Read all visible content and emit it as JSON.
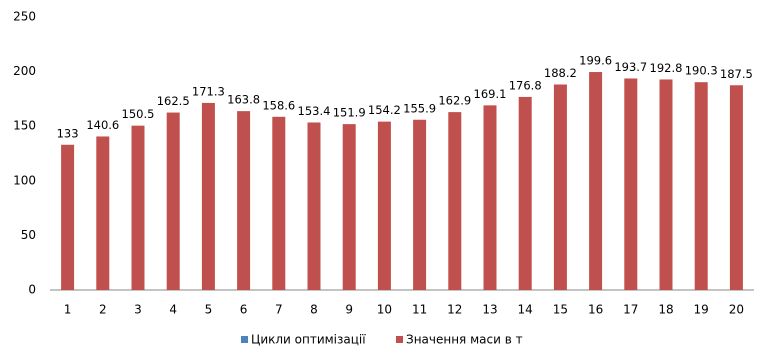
{
  "chart_data": {
    "type": "bar",
    "categories": [
      "1",
      "2",
      "3",
      "4",
      "5",
      "6",
      "7",
      "8",
      "9",
      "10",
      "11",
      "12",
      "13",
      "14",
      "15",
      "16",
      "17",
      "18",
      "19",
      "20"
    ],
    "values": [
      133,
      140.6,
      150.5,
      162.5,
      171.3,
      163.8,
      158.6,
      153.4,
      151.9,
      154.2,
      155.9,
      162.9,
      169.1,
      176.8,
      188.2,
      199.6,
      193.7,
      192.8,
      190.3,
      187.5
    ],
    "color": "#c0504d",
    "ylim": [
      0,
      250
    ],
    "yticks": [
      0,
      50,
      100,
      150,
      200,
      250
    ],
    "legend": [
      {
        "name": "Цикли оптимізації",
        "color": "#4f81bd"
      },
      {
        "name": "Значення маси в т",
        "color": "#c0504d"
      }
    ]
  }
}
